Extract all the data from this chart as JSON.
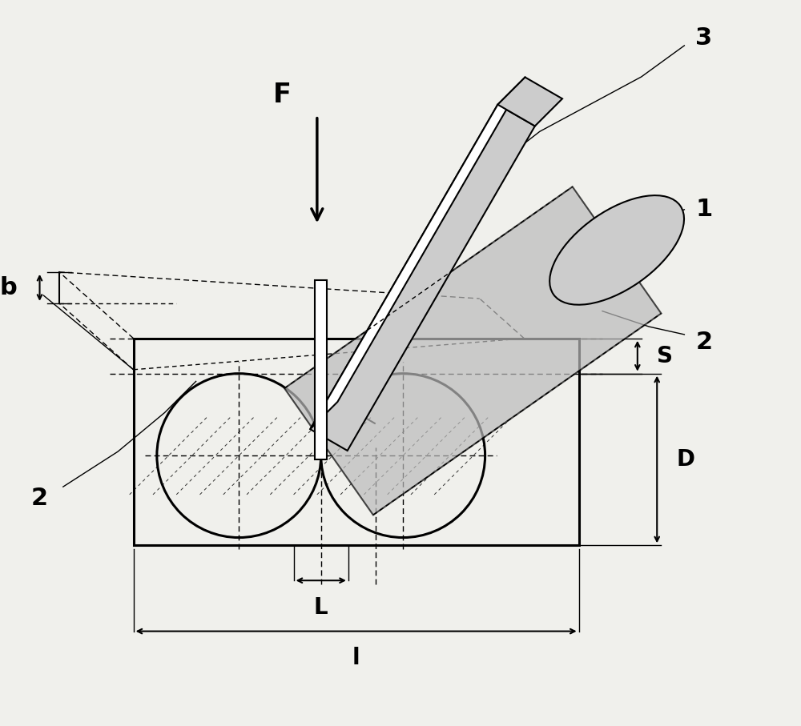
{
  "bg_color": "#f0f0ec",
  "line_color": "#000000",
  "gray_fill": "#aaaaaa",
  "light_gray": "#cccccc",
  "white": "#ffffff",
  "fig_width": 10.0,
  "fig_height": 9.07,
  "labels": {
    "F": "F",
    "b": "b",
    "S": "S",
    "D": "D",
    "L": "L",
    "l": "l",
    "1": "1",
    "2": "2",
    "3": "3"
  }
}
